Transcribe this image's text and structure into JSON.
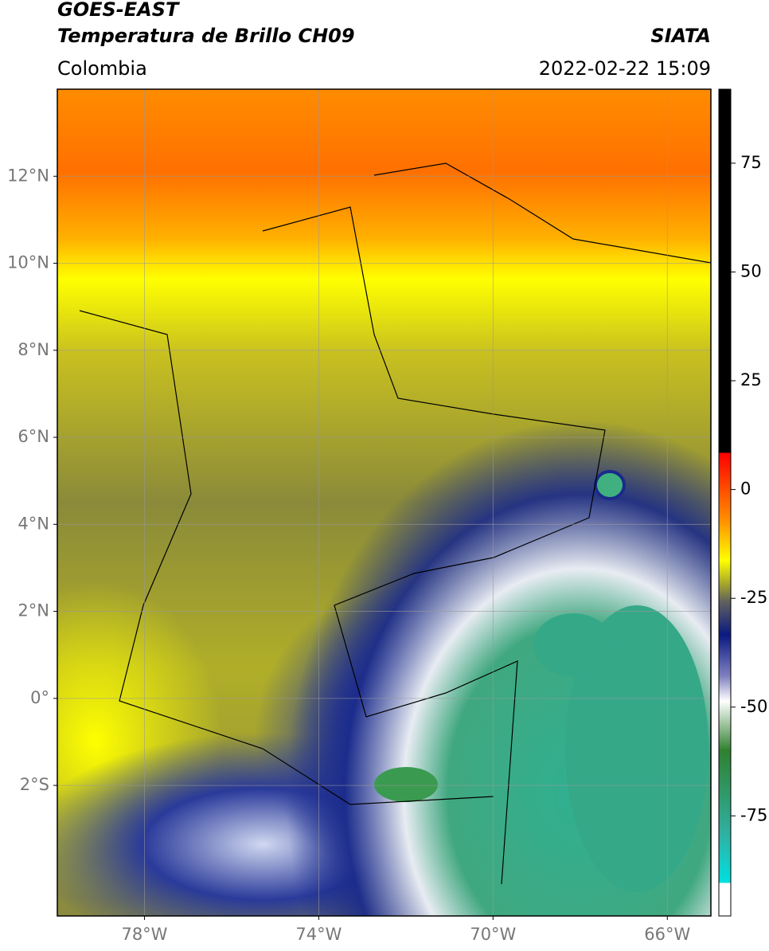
{
  "header": {
    "satellite": "GOES-EAST",
    "product": "Temperatura de Brillo CH09",
    "region": "Colombia",
    "source": "SIATA",
    "datetime": "2022-02-22 15:09"
  },
  "map": {
    "lat_lim": [
      -5,
      14
    ],
    "lon_lim": [
      -80,
      -65
    ],
    "lat_ticks": [
      {
        "value": 12,
        "label": "12°N"
      },
      {
        "value": 10,
        "label": "10°N"
      },
      {
        "value": 8,
        "label": "8°N"
      },
      {
        "value": 6,
        "label": "6°N"
      },
      {
        "value": 4,
        "label": "4°N"
      },
      {
        "value": 2,
        "label": "2°N"
      },
      {
        "value": 0,
        "label": "0°"
      },
      {
        "value": -2,
        "label": "2°S"
      }
    ],
    "lon_ticks": [
      {
        "value": -78,
        "label": "78°W"
      },
      {
        "value": -74,
        "label": "74°W"
      },
      {
        "value": -70,
        "label": "70°W"
      },
      {
        "value": -66,
        "label": "66°W"
      }
    ],
    "grid": true
  },
  "colorbar": {
    "lim": [
      -98,
      92
    ],
    "ticks": [
      75,
      50,
      25,
      0,
      -25,
      -50,
      -75
    ]
  }
}
